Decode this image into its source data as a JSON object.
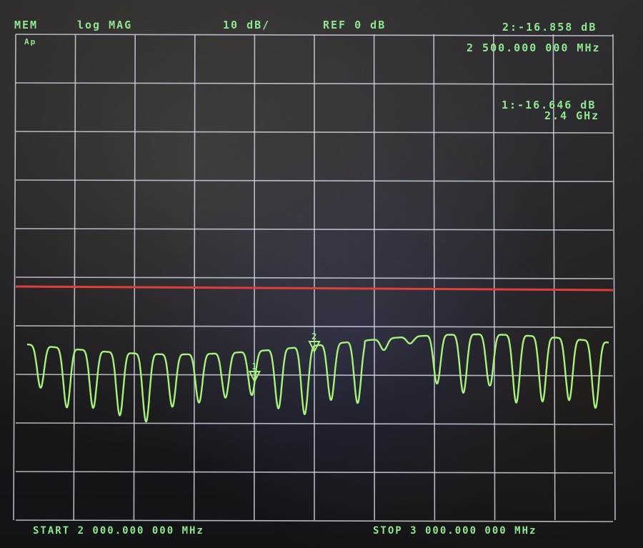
{
  "header": {
    "format": "MEM",
    "scale_mode": "log MAG",
    "scale_div": "10 dB/",
    "reference": "REF 0 dB",
    "marker2_value": "2:-16.858 dB"
  },
  "annotations": {
    "channel_label": "Ap",
    "marker2_freq": "2 500.000 000 MHz",
    "marker1_value": "1:-16.646 dB",
    "marker1_freq": "2.4 GHz"
  },
  "footer": {
    "start": "START 2 000.000 000 MHz",
    "stop": "STOP 3 000.000 000 MHz"
  },
  "markers": [
    {
      "label": "1",
      "freq_mhz": 2400
    },
    {
      "label": "2",
      "freq_mhz": 2500
    }
  ],
  "colors": {
    "trace": "#a6f27a",
    "reference_line": "#e0403a",
    "graticule": "#cfd3e0",
    "text": "#8fe88f"
  }
}
